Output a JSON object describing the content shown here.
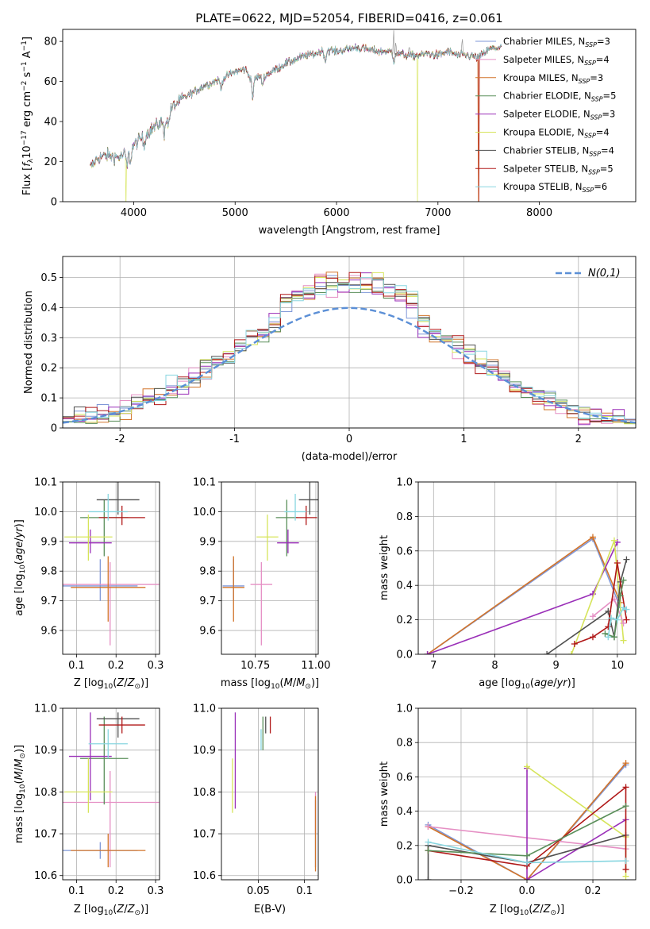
{
  "figure": {
    "title": "PLATE=0622, MJD=52054, FIBERID=0416, z=0.061"
  },
  "colors": {
    "Chabrier MILES": "#7f97d8",
    "Salpeter MILES": "#e58fc4",
    "Kroupa MILES": "#d2742a",
    "Chabrier ELODIE": "#5a8f5a",
    "Salpeter ELODIE": "#9a2fb8",
    "Kroupa ELODIE": "#d6e45a",
    "Chabrier STELIB": "#505050",
    "Salpeter STELIB": "#b01818",
    "Kroupa STELIB": "#88d6e0",
    "normal": "#5b8fd6"
  },
  "chart_data": [
    {
      "id": "spectrum",
      "type": "line",
      "xlabel": "wavelength [Angstrom, rest frame]",
      "ylabel": "Flux [f_λ10^−17 erg cm^−2 s^−1 A^−1]",
      "xlim": [
        3300,
        8950
      ],
      "ylim": [
        0,
        86
      ],
      "xticks": [
        4000,
        5000,
        6000,
        7000,
        8000
      ],
      "yticks": [
        0,
        20,
        40,
        60,
        80
      ],
      "grid": false,
      "legend_position": "upper right",
      "legend": [
        {
          "label": "Chabrier MILES, N",
          "sub": "SSP",
          "suffix": "=3"
        },
        {
          "label": "Salpeter MILES, N",
          "sub": "SSP",
          "suffix": "=4"
        },
        {
          "label": "Kroupa MILES, N",
          "sub": "SSP",
          "suffix": "=3"
        },
        {
          "label": "Chabrier ELODIE, N",
          "sub": "SSP",
          "suffix": "=5"
        },
        {
          "label": "Salpeter ELODIE, N",
          "sub": "SSP",
          "suffix": "=3"
        },
        {
          "label": "Kroupa ELODIE, N",
          "sub": "SSP",
          "suffix": "=4"
        },
        {
          "label": "Chabrier STELIB, N",
          "sub": "SSP",
          "suffix": "=4"
        },
        {
          "label": "Salpeter STELIB, N",
          "sub": "SSP",
          "suffix": "=5"
        },
        {
          "label": "Kroupa STELIB, N",
          "sub": "SSP",
          "suffix": "=6"
        }
      ],
      "continuum": [
        [
          3570,
          17
        ],
        [
          3650,
          22
        ],
        [
          3750,
          23
        ],
        [
          3850,
          22
        ],
        [
          3950,
          25
        ],
        [
          4000,
          28
        ],
        [
          4100,
          33
        ],
        [
          4200,
          37
        ],
        [
          4300,
          41
        ],
        [
          4400,
          48
        ],
        [
          4500,
          52
        ],
        [
          4600,
          55
        ],
        [
          4700,
          58
        ],
        [
          4800,
          60
        ],
        [
          4900,
          62
        ],
        [
          5000,
          65
        ],
        [
          5100,
          66
        ],
        [
          5150,
          62
        ],
        [
          5200,
          62
        ],
        [
          5300,
          63
        ],
        [
          5400,
          66
        ],
        [
          5500,
          69
        ],
        [
          5600,
          71
        ],
        [
          5700,
          73
        ],
        [
          5800,
          74
        ],
        [
          5900,
          76
        ],
        [
          6000,
          75
        ],
        [
          6100,
          76
        ],
        [
          6200,
          77
        ],
        [
          6300,
          76
        ],
        [
          6400,
          75
        ],
        [
          6500,
          75
        ],
        [
          6600,
          74
        ],
        [
          6700,
          73
        ],
        [
          6800,
          73
        ],
        [
          6900,
          74
        ],
        [
          7000,
          73
        ],
        [
          7100,
          75
        ],
        [
          7200,
          73
        ],
        [
          7300,
          73
        ],
        [
          7400,
          72
        ],
        [
          7500,
          76
        ],
        [
          7600,
          77
        ]
      ],
      "absorption_features": [
        [
          3934,
          7
        ],
        [
          3969,
          6
        ],
        [
          4102,
          5
        ],
        [
          4300,
          7
        ],
        [
          4340,
          6
        ],
        [
          4861,
          5
        ],
        [
          5175,
          10
        ],
        [
          5270,
          4
        ],
        [
          5890,
          6
        ],
        [
          6563,
          4
        ]
      ],
      "data_emission_peaks": [
        [
          6563,
          86
        ],
        [
          6584,
          80
        ],
        [
          6717,
          78
        ],
        [
          7240,
          82
        ]
      ],
      "dropouts": [
        {
          "series": "Kroupa ELODIE",
          "x": 3925
        },
        {
          "series": "Kroupa ELODIE",
          "x": 6800
        },
        {
          "series": "Kroupa MILES",
          "x": 7400
        },
        {
          "series": "Salpeter STELIB",
          "x": 7405
        }
      ]
    },
    {
      "id": "residuals",
      "type": "histogram",
      "xlabel": "(data-model)/error",
      "ylabel": "Normed distribution",
      "xlim": [
        -2.5,
        2.5
      ],
      "ylim": [
        0,
        0.57
      ],
      "xticks": [
        -2,
        -1,
        0,
        1,
        2
      ],
      "yticks": [
        0.0,
        0.1,
        0.2,
        0.3,
        0.4,
        0.5
      ],
      "grid": true,
      "legend_position": "upper right",
      "legend_label": "N(0,1)",
      "bin_width": 0.1,
      "bins_start": -2.5
    },
    {
      "id": "age-vs-Z",
      "type": "scatter",
      "xlabel": "Z [log10(Z/Z⊙)]",
      "ylabel": "age  [log10(age/yr)]",
      "xlim": [
        0.065,
        0.31
      ],
      "ylim": [
        9.52,
        10.1
      ],
      "xticks": [
        0.1,
        0.2,
        0.3
      ],
      "yticks": [
        9.6,
        9.7,
        9.8,
        9.9,
        10.0,
        10.1
      ],
      "grid": true
    },
    {
      "id": "age-vs-mass",
      "type": "scatter",
      "xlabel": "mass [log10(M/M⊙)]",
      "ylabel": "",
      "xlim": [
        10.61,
        11.01
      ],
      "ylim": [
        9.52,
        10.1
      ],
      "xticks": [
        10.75,
        11.0
      ],
      "yticks": [
        9.6,
        9.7,
        9.8,
        9.9,
        10.0,
        10.1
      ],
      "grid": true
    },
    {
      "id": "weight-vs-age",
      "type": "line",
      "xlabel": "age  [log10(age/yr)]",
      "ylabel": "mass weight",
      "xlim": [
        6.75,
        10.3
      ],
      "ylim": [
        0,
        1
      ],
      "xticks": [
        7,
        8,
        9,
        10
      ],
      "yticks": [
        0.0,
        0.2,
        0.4,
        0.6,
        0.8,
        1.0
      ],
      "grid": true
    },
    {
      "id": "mass-vs-Z",
      "type": "scatter",
      "xlabel": "Z [log10(Z/Z⊙)]",
      "ylabel": "mass [log10(M/M⊙)]",
      "xlim": [
        0.065,
        0.31
      ],
      "ylim": [
        10.59,
        11.0
      ],
      "xticks": [
        0.1,
        0.2,
        0.3
      ],
      "yticks": [
        10.6,
        10.7,
        10.8,
        10.9,
        11.0
      ],
      "grid": true
    },
    {
      "id": "mass-vs-EBV",
      "type": "scatter",
      "xlabel": "E(B-V)",
      "ylabel": "",
      "xlim": [
        0.01,
        0.115
      ],
      "ylim": [
        10.59,
        11.0
      ],
      "xticks": [
        0.05,
        0.1
      ],
      "yticks": [
        10.6,
        10.7,
        10.8,
        10.9,
        11.0
      ],
      "grid": true
    },
    {
      "id": "weight-vs-Z",
      "type": "line",
      "xlabel": "Z [log10(Z/Z⊙)]",
      "ylabel": "mass weight",
      "xlim": [
        -0.33,
        0.33
      ],
      "ylim": [
        0,
        1
      ],
      "xticks": [
        -0.2,
        0.0,
        0.2
      ],
      "yticks": [
        0.0,
        0.2,
        0.4,
        0.6,
        0.8,
        1.0
      ],
      "grid": true
    }
  ],
  "series_params": [
    {
      "name": "Chabrier MILES",
      "Z": [
        0.16,
        0.21
      ],
      "age": [
        9.75,
        9.84,
        9.7
      ],
      "mass": [
        10.66,
        10.68,
        10.64
      ],
      "ebv": [
        0.112,
        10.62,
        10.78
      ]
    },
    {
      "name": "Salpeter MILES",
      "Z": [
        0.185,
        0.275
      ],
      "age": [
        9.755,
        9.83,
        9.55
      ],
      "mass": [
        10.775,
        10.85,
        10.62
      ],
      "ebv": [
        0.112,
        10.7,
        10.8
      ]
    },
    {
      "name": "Kroupa MILES",
      "Z": [
        0.18,
        0.21
      ],
      "age": [
        9.745,
        9.85,
        9.63
      ],
      "mass": [
        10.66,
        10.7,
        10.62
      ],
      "ebv": [
        0.112,
        10.61,
        10.79
      ]
    },
    {
      "name": "Chabrier ELODIE",
      "Z": [
        0.17,
        0.135
      ],
      "age": [
        9.98,
        10.04,
        9.85
      ],
      "mass": [
        10.88,
        10.98,
        10.77
      ],
      "ebv": [
        0.055,
        10.9,
        10.98
      ]
    },
    {
      "name": "Salpeter ELODIE",
      "Z": [
        0.135,
        0.12
      ],
      "age": [
        9.895,
        9.94,
        9.86
      ],
      "mass": [
        10.885,
        10.99,
        10.78
      ],
      "ebv": [
        0.025,
        10.76,
        10.99
      ]
    },
    {
      "name": "Kroupa ELODIE",
      "Z": [
        0.13,
        0.135
      ],
      "age": [
        9.915,
        9.99,
        9.835
      ],
      "mass": [
        10.8,
        10.88,
        10.75
      ],
      "ebv": [
        0.022,
        10.75,
        10.88
      ]
    },
    {
      "name": "Chabrier STELIB",
      "Z": [
        0.205,
        0.12
      ],
      "age": [
        10.04,
        10.1,
        9.99
      ],
      "mass": [
        10.975,
        10.99,
        10.93
      ],
      "ebv": [
        0.058,
        10.94,
        10.98
      ]
    },
    {
      "name": "Salpeter STELIB",
      "Z": [
        0.215,
        0.13
      ],
      "age": [
        9.98,
        10.02,
        9.955
      ],
      "mass": [
        10.96,
        10.98,
        10.94
      ],
      "ebv": [
        0.063,
        10.94,
        10.98
      ]
    },
    {
      "name": "Kroupa STELIB",
      "Z": [
        0.18,
        0.11
      ],
      "age": [
        10.0,
        10.06,
        9.97
      ],
      "mass": [
        10.915,
        10.95,
        10.88
      ],
      "ebv": [
        0.053,
        10.9,
        10.95
      ]
    }
  ],
  "weights_age": [
    {
      "name": "Chabrier MILES",
      "pts": [
        [
          6.9,
          0.0
        ],
        [
          9.6,
          0.67
        ],
        [
          10.05,
          0.27
        ]
      ]
    },
    {
      "name": "Kroupa MILES",
      "pts": [
        [
          6.9,
          0.0
        ],
        [
          9.6,
          0.68
        ],
        [
          10.05,
          0.3
        ]
      ]
    },
    {
      "name": "Salpeter ELODIE",
      "pts": [
        [
          6.9,
          0.0
        ],
        [
          9.6,
          0.35
        ],
        [
          10.0,
          0.65
        ]
      ]
    },
    {
      "name": "Kroupa ELODIE",
      "pts": [
        [
          9.25,
          0.0
        ],
        [
          9.95,
          0.66
        ],
        [
          10.1,
          0.08
        ]
      ]
    },
    {
      "name": "Salpeter MILES",
      "pts": [
        [
          9.6,
          0.22
        ],
        [
          9.95,
          0.32
        ],
        [
          10.1,
          0.18
        ]
      ]
    },
    {
      "name": "Chabrier STELIB",
      "pts": [
        [
          8.85,
          0.0
        ],
        [
          9.85,
          0.25
        ],
        [
          9.95,
          0.1
        ],
        [
          10.05,
          0.42
        ],
        [
          10.15,
          0.55
        ]
      ]
    },
    {
      "name": "Salpeter STELIB",
      "pts": [
        [
          9.3,
          0.06
        ],
        [
          9.6,
          0.1
        ],
        [
          9.85,
          0.16
        ],
        [
          10.0,
          0.53
        ],
        [
          10.15,
          0.2
        ]
      ]
    },
    {
      "name": "Chabrier ELODIE",
      "pts": [
        [
          9.8,
          0.12
        ],
        [
          9.95,
          0.1
        ],
        [
          10.05,
          0.34
        ],
        [
          10.1,
          0.43
        ]
      ]
    },
    {
      "name": "Kroupa STELIB",
      "pts": [
        [
          9.85,
          0.1
        ],
        [
          9.9,
          0.21
        ],
        [
          10.0,
          0.2
        ],
        [
          10.1,
          0.27
        ],
        [
          10.15,
          0.26
        ]
      ]
    }
  ],
  "weights_Z": [
    {
      "name": "Chabrier MILES",
      "pts": [
        [
          -0.3,
          0.32
        ],
        [
          0.0,
          0.0
        ],
        [
          0.3,
          0.67
        ]
      ]
    },
    {
      "name": "Kroupa MILES",
      "pts": [
        [
          -0.3,
          0.31
        ],
        [
          0.0,
          0.0
        ],
        [
          0.3,
          0.68
        ]
      ]
    },
    {
      "name": "Salpeter MILES",
      "pts": [
        [
          -0.3,
          0.31
        ],
        [
          0.3,
          0.18
        ]
      ]
    },
    {
      "name": "Salpeter ELODIE",
      "pts": [
        [
          0.0,
          0.65
        ],
        [
          0.0,
          0.0
        ],
        [
          0.3,
          0.35
        ]
      ]
    },
    {
      "name": "Kroupa ELODIE",
      "pts": [
        [
          0.0,
          0.66
        ],
        [
          0.3,
          0.25
        ],
        [
          0.3,
          0.02
        ]
      ]
    },
    {
      "name": "Chabrier STELIB",
      "pts": [
        [
          -0.3,
          0.0
        ],
        [
          -0.3,
          0.2
        ],
        [
          0.0,
          0.1
        ],
        [
          0.3,
          0.26
        ]
      ]
    },
    {
      "name": "Salpeter STELIB",
      "pts": [
        [
          -0.3,
          0.17
        ],
        [
          0.0,
          0.08
        ],
        [
          0.3,
          0.54
        ],
        [
          0.3,
          0.06
        ]
      ]
    },
    {
      "name": "Chabrier ELODIE",
      "pts": [
        [
          -0.3,
          0.17
        ],
        [
          0.0,
          0.14
        ],
        [
          0.3,
          0.43
        ]
      ]
    },
    {
      "name": "Kroupa STELIB",
      "pts": [
        [
          -0.3,
          0.22
        ],
        [
          0.0,
          0.1
        ],
        [
          0.3,
          0.11
        ]
      ]
    }
  ]
}
